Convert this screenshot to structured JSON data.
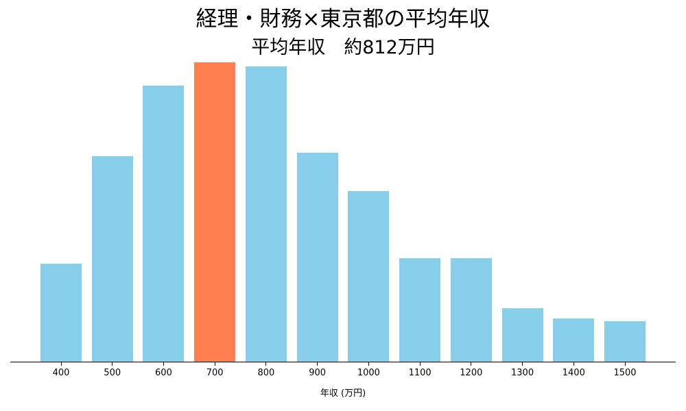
{
  "title": "経理・財務×東京都の平均年収",
  "subtitle": "平均年収　約812万円",
  "xlabel": "年収 (万円)",
  "colors": {
    "default": "#87CEEB",
    "highlight": "#FF7F50",
    "axis": "#000000"
  },
  "chart_data": {
    "type": "bar",
    "title": "経理・財務×東京都の平均年収",
    "subtitle": "平均年収　約812万円",
    "xlabel": "年収 (万円)",
    "ylabel": "",
    "categories": [
      "400",
      "500",
      "600",
      "700",
      "800",
      "900",
      "1000",
      "1100",
      "1200",
      "1300",
      "1400",
      "1500"
    ],
    "values": [
      144,
      301,
      404,
      438,
      432,
      306,
      250,
      152,
      152,
      79,
      64,
      60
    ],
    "value_note": "relative heights (no y-axis shown); measured in pixels above baseline",
    "highlight_category": "700",
    "ylim": [
      0,
      438
    ],
    "grid": false,
    "legend": null
  }
}
